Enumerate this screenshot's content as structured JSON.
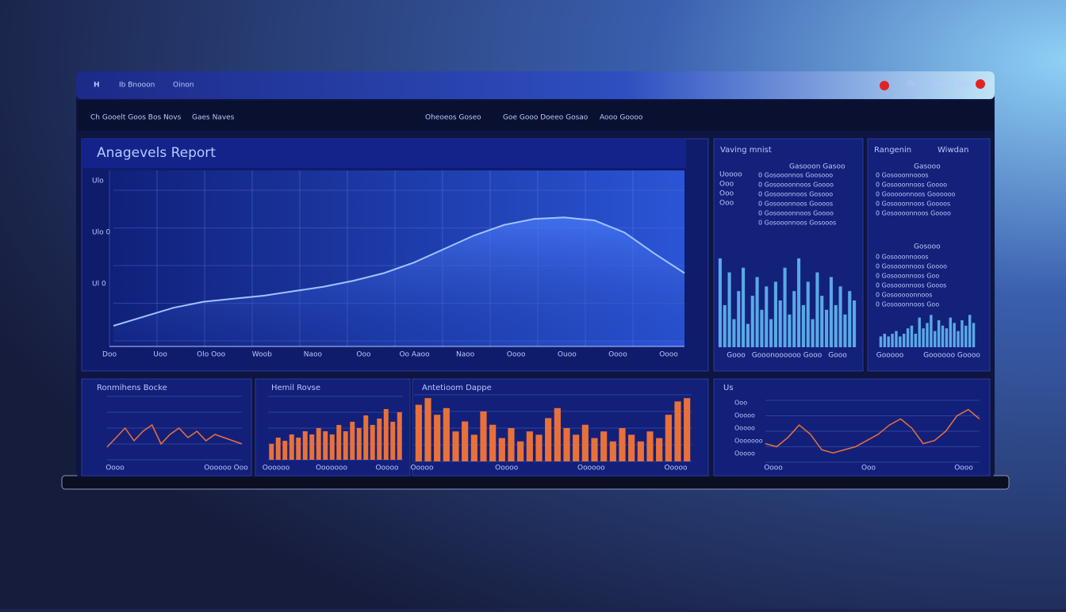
{
  "topbar": {
    "logo": "H",
    "items": [
      "Ib Bnooon",
      "Oinon"
    ],
    "actions": [
      "Ifo",
      "Ooo",
      "Poo"
    ]
  },
  "nav": {
    "left": [
      "Ch Gooelt Goos Bos Novs",
      "Gaes Naves"
    ],
    "center": [
      "Oheoeos Goseo",
      "Goe Gooo Doeeo Gosao",
      "Aooo Goooo"
    ]
  },
  "main": {
    "title": "Anagevels Report",
    "ylabels": [
      "Ulo",
      "Ulo 0",
      "Ul 0"
    ],
    "xlabels": [
      "Doo",
      "Uoo",
      "Olo Ooo",
      "Woob",
      "Naoo",
      "Ooo",
      "Oo Aaoo",
      "Naoo",
      "Oooo",
      "Ouoo",
      "Oooo",
      "Oooo"
    ],
    "chart": {
      "type": "area",
      "color": "#9fc3ff",
      "ylim": [
        0,
        100
      ],
      "values": [
        10,
        16,
        22,
        26,
        28,
        30,
        33,
        36,
        40,
        45,
        52,
        61,
        70,
        77,
        81,
        82,
        80,
        72,
        58,
        45
      ]
    }
  },
  "panels": [
    {
      "title": "Vaving mnist",
      "side": [
        "Uoooo",
        "Ooo",
        "Ooo",
        "Ooo"
      ],
      "heading": "Gasooon Gasoo",
      "lines": [
        "0 Gosooonnos Goosooo",
        "0 Gosoooonnoos Goooo",
        "0 Gosooonnoos Gosooo",
        "0 Gosooonnoos Goooos",
        "0 Gosoooonnoos Goooo",
        "0 Gosooonnoos Gosooos"
      ],
      "xlabels": [
        "Gooo",
        "Gooonoooooo Gooo",
        "Gooo"
      ],
      "chart": {
        "type": "bar",
        "color": "#5aa9e6",
        "ylim": [
          0,
          100
        ],
        "values": [
          95,
          45,
          80,
          30,
          60,
          85,
          25,
          55,
          75,
          40,
          65,
          30,
          70,
          50,
          85,
          35,
          60,
          95,
          45,
          70,
          30,
          80,
          55,
          40,
          75,
          45,
          65,
          35,
          60,
          50
        ]
      }
    },
    {
      "title": "Rangenin",
      "title2": "Wiwdan",
      "heading": "Gasooo",
      "lines": [
        "0 Gosooonnooos",
        "0 Gosooonnoos Goooo",
        "0 Gooooonnoos Goooooo",
        "0 Gosooonnoos Goooos",
        "0 Gosoooonnoos Goooo"
      ],
      "heading2": "Gosooo",
      "lines2": [
        "0 Gosooonnooos",
        "0 Gosooonnoos Goooo",
        "0 Gosooonnoos Goo",
        "0 Gosooonnoos Gooos",
        "0 Gosooooonnoos",
        "0 Gosooonnoos Goo"
      ],
      "xlabels": [
        "Gooooo",
        "Goooooo Goooo"
      ],
      "chart": {
        "type": "bar",
        "color": "#5aa9e6",
        "ylim": [
          0,
          100
        ],
        "values": [
          20,
          25,
          20,
          25,
          30,
          20,
          25,
          35,
          40,
          25,
          55,
          35,
          45,
          60,
          30,
          50,
          40,
          35,
          55,
          45,
          30,
          50,
          40,
          60,
          45
        ]
      }
    }
  ],
  "bottom": [
    {
      "title": "Ronmihens Bocke",
      "xlabels": [
        "Oooo",
        "Oooooo Ooo"
      ],
      "chart": {
        "type": "line",
        "color": "#e8713a",
        "ylim": [
          0,
          100
        ],
        "values": [
          20,
          35,
          50,
          30,
          45,
          55,
          25,
          40,
          50,
          35,
          45,
          30,
          40,
          35,
          30,
          25
        ]
      }
    },
    {
      "title": "Hemil Rovse",
      "xlabels": [
        "Oooooo",
        "Ooooooo",
        "Ooooo"
      ],
      "chart": {
        "type": "bar",
        "color": "#e8713a",
        "ylim": [
          0,
          100
        ],
        "values": [
          25,
          35,
          30,
          40,
          35,
          45,
          40,
          50,
          45,
          40,
          55,
          45,
          60,
          50,
          70,
          55,
          65,
          80,
          60,
          75
        ]
      }
    },
    {
      "title": "Antetioom Dappe",
      "xlabels": [
        "Ooooo",
        "Ooooo",
        "Oooooo",
        "Ooooo"
      ],
      "chart": {
        "type": "bar",
        "color": "#e8713a",
        "ylim": [
          0,
          100
        ],
        "values": [
          85,
          95,
          70,
          80,
          45,
          60,
          40,
          75,
          55,
          35,
          50,
          30,
          45,
          40,
          65,
          80,
          50,
          40,
          55,
          35,
          45,
          30,
          50,
          40,
          30,
          45,
          35,
          70,
          90,
          95
        ]
      }
    },
    {
      "title": "Us",
      "ylabels": [
        "Ooo",
        "Ooooo",
        "Ooooo",
        "Ooooooo",
        "Ooooo"
      ],
      "xlabels": [
        "Oooo",
        "Ooo",
        "Oooo"
      ],
      "chart": {
        "type": "line",
        "color": "#e8713a",
        "ylim": [
          0,
          100
        ],
        "values": [
          30,
          25,
          40,
          60,
          45,
          20,
          15,
          20,
          25,
          35,
          45,
          60,
          70,
          55,
          30,
          35,
          50,
          75,
          85,
          70
        ]
      }
    }
  ]
}
